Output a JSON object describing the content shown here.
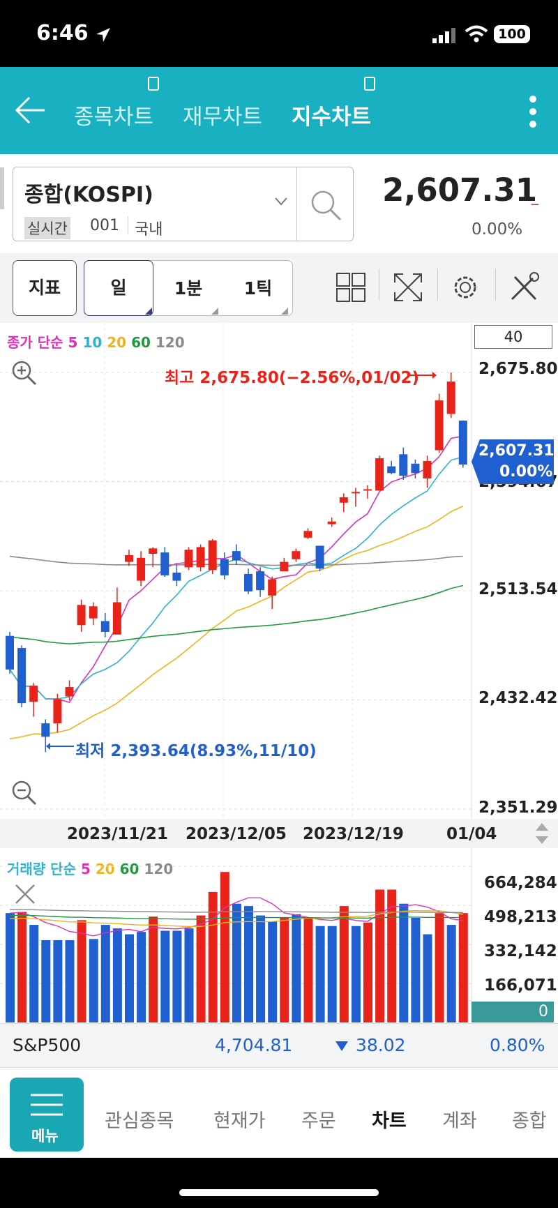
{
  "status_bar": {
    "time": "6:46",
    "battery": "100"
  },
  "header": {
    "tabs": [
      {
        "label": "종목차트",
        "active": false
      },
      {
        "label": "재무차트",
        "active": false
      },
      {
        "label": "지수차트",
        "active": true
      }
    ]
  },
  "instrument": {
    "name": "종합(KOSPI)",
    "tag": "실시간",
    "code": "001",
    "market": "국내",
    "price": "2,607.31",
    "change_marker": "_",
    "change_pct": "0.00%"
  },
  "toolbar": {
    "indicator_label": "지표",
    "period_buttons": [
      "일",
      "1분",
      "1틱"
    ]
  },
  "chart_legend": {
    "label": "종가 단순",
    "periods": [
      "5",
      "10",
      "20",
      "60",
      "120"
    ]
  },
  "chart_count": "40",
  "price_badge": {
    "price": "2,607.31",
    "pct": "0.00%"
  },
  "chart_annotations": {
    "high": "최고 2,675.80(−2.56%,01/02)",
    "low": "최저 2,393.64(8.93%,11/10)"
  },
  "volume_legend": {
    "label": "거래량 단순",
    "periods": [
      "5",
      "20",
      "60",
      "120"
    ]
  },
  "colors": {
    "up": "#e8231a",
    "down": "#1f5fcf",
    "accent": "#19b0c2",
    "ma5": "#e02fb8",
    "ma10": "#2bb3d2",
    "ma20": "#f0b31a",
    "ma60": "#1e9b3c",
    "ma120": "#8a8a8a"
  },
  "chart_data": [
    {
      "type": "candlestick",
      "title": "종합(KOSPI)",
      "y_ticks": [
        "2,675.80",
        "2,594.67",
        "2,513.54",
        "2,432.42",
        "2,351.29"
      ],
      "x_ticks": [
        "2023/11/21",
        "2023/12/05",
        "2023/12/19",
        "01/04"
      ],
      "ylim": [
        2351.29,
        2675.8
      ],
      "high": {
        "value": 2675.8,
        "label": "2,675.80",
        "pct": "-2.56%",
        "date": "01/02"
      },
      "low": {
        "value": 2393.64,
        "label": "2,393.64",
        "pct": "8.93%",
        "date": "11/10"
      },
      "candles": [
        {
          "o": 2480,
          "h": 2483,
          "l": 2452,
          "c": 2455
        },
        {
          "o": 2471,
          "h": 2473,
          "l": 2427,
          "c": 2430
        },
        {
          "o": 2431,
          "h": 2445,
          "l": 2420,
          "c": 2443
        },
        {
          "o": 2415,
          "h": 2418,
          "l": 2393.64,
          "c": 2405
        },
        {
          "o": 2415,
          "h": 2437,
          "l": 2408,
          "c": 2433
        },
        {
          "o": 2435,
          "h": 2447,
          "l": 2432,
          "c": 2442
        },
        {
          "o": 2488,
          "h": 2507,
          "l": 2483,
          "c": 2503
        },
        {
          "o": 2493,
          "h": 2505,
          "l": 2488,
          "c": 2502
        },
        {
          "o": 2491,
          "h": 2497,
          "l": 2479,
          "c": 2483
        },
        {
          "o": 2481,
          "h": 2516,
          "l": 2481,
          "c": 2505
        },
        {
          "o": 2535,
          "h": 2544,
          "l": 2532,
          "c": 2540
        },
        {
          "o": 2521,
          "h": 2543,
          "l": 2517,
          "c": 2538
        },
        {
          "o": 2541,
          "h": 2546,
          "l": 2531,
          "c": 2545
        },
        {
          "o": 2542,
          "h": 2546,
          "l": 2524,
          "c": 2525
        },
        {
          "o": 2527,
          "h": 2533,
          "l": 2517,
          "c": 2521
        },
        {
          "o": 2531,
          "h": 2546,
          "l": 2529,
          "c": 2544
        },
        {
          "o": 2531,
          "h": 2548,
          "l": 2528,
          "c": 2546
        },
        {
          "o": 2529,
          "h": 2552,
          "l": 2526,
          "c": 2551
        },
        {
          "o": 2537,
          "h": 2542,
          "l": 2522,
          "c": 2525
        },
        {
          "o": 2543,
          "h": 2548,
          "l": 2533,
          "c": 2536
        },
        {
          "o": 2526,
          "h": 2530,
          "l": 2511,
          "c": 2513
        },
        {
          "o": 2528,
          "h": 2531,
          "l": 2509,
          "c": 2514
        },
        {
          "o": 2510,
          "h": 2524,
          "l": 2500,
          "c": 2522
        },
        {
          "o": 2528,
          "h": 2538,
          "l": 2528,
          "c": 2535
        },
        {
          "o": 2537,
          "h": 2545,
          "l": 2535,
          "c": 2543
        },
        {
          "o": 2553,
          "h": 2560,
          "l": 2552,
          "c": 2558
        },
        {
          "o": 2547,
          "h": 2545,
          "l": 2528,
          "c": 2530
        },
        {
          "o": 2563,
          "h": 2568,
          "l": 2561,
          "c": 2565
        },
        {
          "o": 2579,
          "h": 2586,
          "l": 2572,
          "c": 2583
        },
        {
          "o": 2586,
          "h": 2590,
          "l": 2576,
          "c": 2587
        },
        {
          "o": 2589,
          "h": 2592,
          "l": 2582,
          "c": 2589
        },
        {
          "o": 2588,
          "h": 2614,
          "l": 2588,
          "c": 2612
        },
        {
          "o": 2606,
          "h": 2610,
          "l": 2600,
          "c": 2601
        },
        {
          "o": 2615,
          "h": 2620,
          "l": 2596,
          "c": 2599
        },
        {
          "o": 2608,
          "h": 2611,
          "l": 2597,
          "c": 2601
        },
        {
          "o": 2597,
          "h": 2614,
          "l": 2590,
          "c": 2610
        },
        {
          "o": 2618,
          "h": 2660,
          "l": 2616,
          "c": 2655
        },
        {
          "o": 2645,
          "h": 2675.8,
          "l": 2642,
          "c": 2669
        },
        {
          "o": 2640,
          "h": 2640,
          "l": 2605,
          "c": 2607.31
        }
      ]
    },
    {
      "type": "bar",
      "title": "거래량",
      "y_ticks": [
        "664,284",
        "498,213",
        "332,142",
        "166,071",
        "0"
      ],
      "ylim": [
        0,
        664284
      ],
      "values": [
        465000,
        470000,
        415000,
        350000,
        350000,
        350000,
        435000,
        355000,
        415000,
        400000,
        375000,
        385000,
        450000,
        390000,
        390000,
        400000,
        455000,
        555000,
        640000,
        505000,
        495000,
        455000,
        430000,
        445000,
        460000,
        445000,
        410000,
        410000,
        495000,
        410000,
        425000,
        565000,
        565000,
        505000,
        445000,
        375000,
        465000,
        415000,
        465000
      ],
      "colors": [
        "down",
        "up",
        "down",
        "down",
        "down",
        "down",
        "up",
        "down",
        "down",
        "down",
        "down",
        "down",
        "up",
        "down",
        "down",
        "down",
        "up",
        "up",
        "up",
        "down",
        "down",
        "down",
        "down",
        "up",
        "down",
        "up",
        "down",
        "down",
        "up",
        "down",
        "up",
        "up",
        "up",
        "down",
        "down",
        "down",
        "up",
        "down",
        "up"
      ]
    }
  ],
  "index_row": {
    "name": "S&P500",
    "value": "4,704.81",
    "change": "38.02",
    "pct": "0.80%"
  },
  "bottom_nav": {
    "menu_label": "메뉴",
    "items": [
      "관심종목",
      "현재가",
      "주문",
      "차트",
      "계좌",
      "종합"
    ]
  }
}
